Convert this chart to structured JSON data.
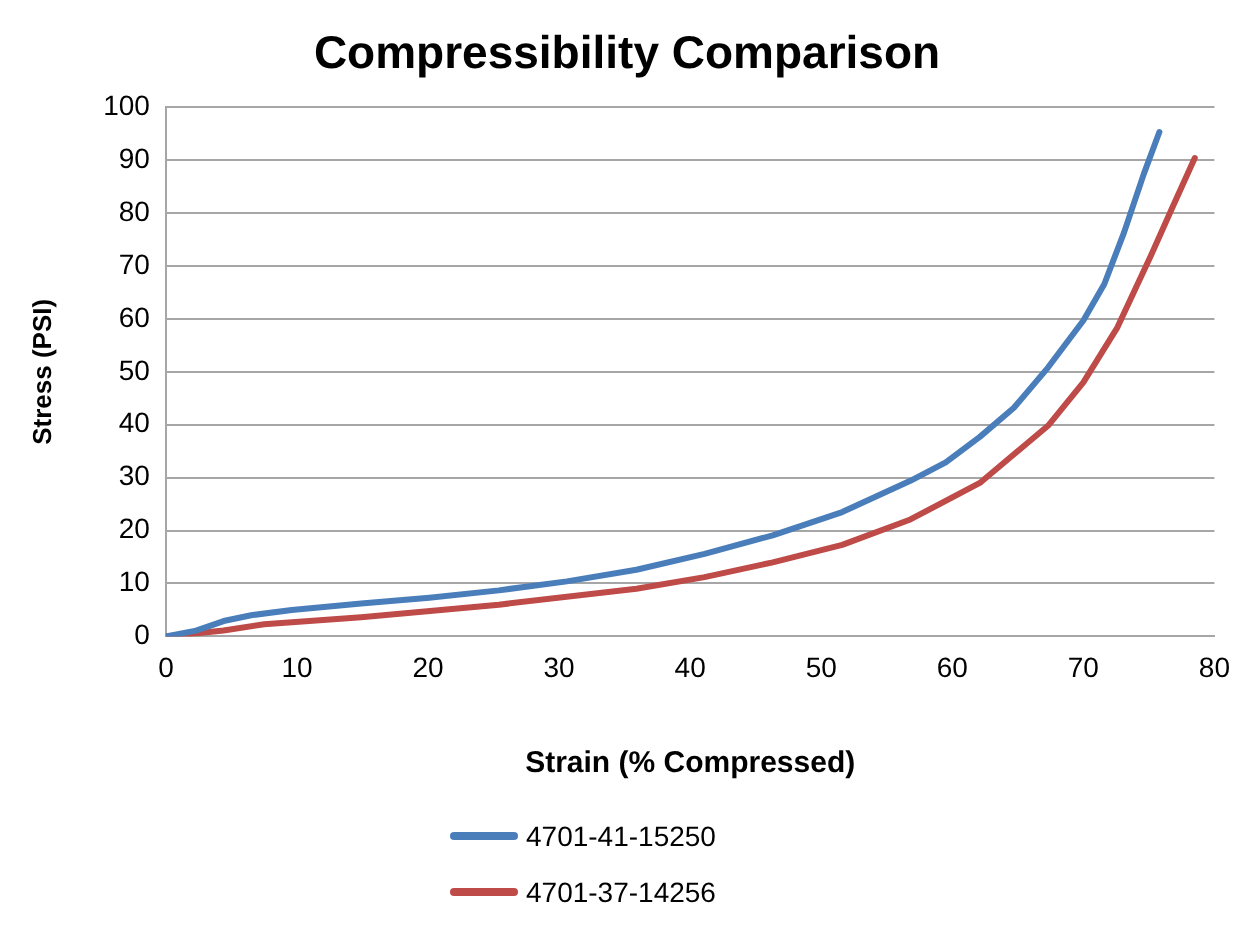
{
  "chart_data": {
    "type": "line",
    "title": "Compressibility Comparison",
    "xlabel": "Strain (% Compressed)",
    "ylabel": "Stress (PSI)",
    "xlim": [
      0,
      80
    ],
    "xticks": [
      0,
      10,
      20,
      30,
      40,
      50,
      60,
      70,
      80
    ],
    "ylim": [
      0,
      100
    ],
    "yticks": [
      0,
      10,
      20,
      30,
      40,
      50,
      60,
      70,
      80,
      90,
      100
    ],
    "grid": "y",
    "legend": "bottom",
    "marker": "none",
    "line_style": "solid",
    "series": [
      {
        "name": "4701-41-15250",
        "color": "#4a7ebb",
        "x": [
          0,
          2.3,
          4.4,
          6.5,
          9.6,
          14.9,
          20.1,
          25.4,
          30.6,
          35.9,
          41.1,
          46.3,
          51.6,
          56.8,
          59.5,
          62.1,
          64.7,
          67.3,
          70,
          71.6,
          73.1,
          74.6,
          75.8
        ],
        "values": [
          0,
          1.1,
          2.9,
          4,
          5,
          6.2,
          7.3,
          8.7,
          10.4,
          12.6,
          15.6,
          19.1,
          23.5,
          29.4,
          32.9,
          37.7,
          43.2,
          50.8,
          59.7,
          66.6,
          76.3,
          87.3,
          95.3
        ]
      },
      {
        "name": "4701-37-14256",
        "color": "#be4b48",
        "x": [
          0,
          4.4,
          7.5,
          14.9,
          25.4,
          35.9,
          41.1,
          46.3,
          51.6,
          56.8,
          62.1,
          67.3,
          70,
          72.6,
          75.2,
          76.8,
          78.5
        ],
        "values": [
          0,
          1.1,
          2.3,
          3.6,
          6,
          9,
          11.2,
          14,
          17.3,
          22.1,
          29,
          39.8,
          48,
          58.4,
          72.2,
          81.1,
          90.4
        ]
      }
    ]
  }
}
